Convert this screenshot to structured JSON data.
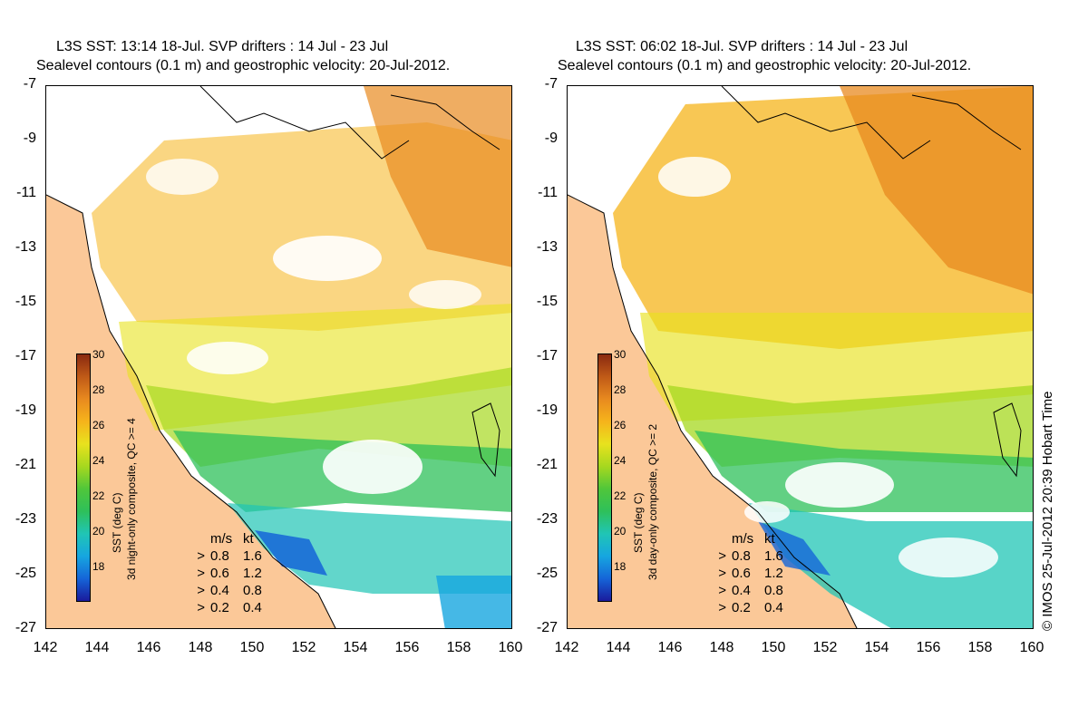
{
  "panels": [
    {
      "title_line1": "L3S SST: 13:14 18-Jul. SVP drifters : 14 Jul - 23 Jul",
      "title_line2": "Sealevel contours (0.1 m) and geostrophic velocity: 20-Jul-2012.",
      "colorbar_label_1": "SST (deg C)",
      "colorbar_label_2": "3d night-only composite, QC >= 4"
    },
    {
      "title_line1": "L3S SST: 06:02 18-Jul. SVP drifters : 14 Jul - 23 Jul",
      "title_line2": "Sealevel contours (0.1 m) and geostrophic velocity: 20-Jul-2012.",
      "colorbar_label_1": "SST (deg C)",
      "colorbar_label_2": "3d day-only composite, QC >= 2"
    }
  ],
  "y_ticks": [
    "-7",
    "-9",
    "-11",
    "-13",
    "-15",
    "-17",
    "-19",
    "-21",
    "-23",
    "-25",
    "-27"
  ],
  "x_ticks": [
    "142",
    "144",
    "146",
    "148",
    "150",
    "152",
    "154",
    "156",
    "158",
    "160"
  ],
  "colorbar_ticks": [
    "30",
    "28",
    "26",
    "24",
    "22",
    "20",
    "18"
  ],
  "velocity_legend": {
    "header_ms": "m/s",
    "header_kt": "kt",
    "rows": [
      {
        "ms": "0.8",
        "kt": "1.6"
      },
      {
        "ms": "0.6",
        "kt": "1.2"
      },
      {
        "ms": "0.4",
        "kt": "0.8"
      },
      {
        "ms": "0.2",
        "kt": "0.4"
      }
    ]
  },
  "credit": "© IMOS 25-Jul-2012 20:39 Hobart Time",
  "colors": {
    "land": "#fbc898",
    "warm": "#e88a1f",
    "mid": "#f6b41b",
    "yellow": "#e8e21e",
    "green": "#2ec05a",
    "cyan": "#16a6e0",
    "blue": "#1a1a9c"
  }
}
